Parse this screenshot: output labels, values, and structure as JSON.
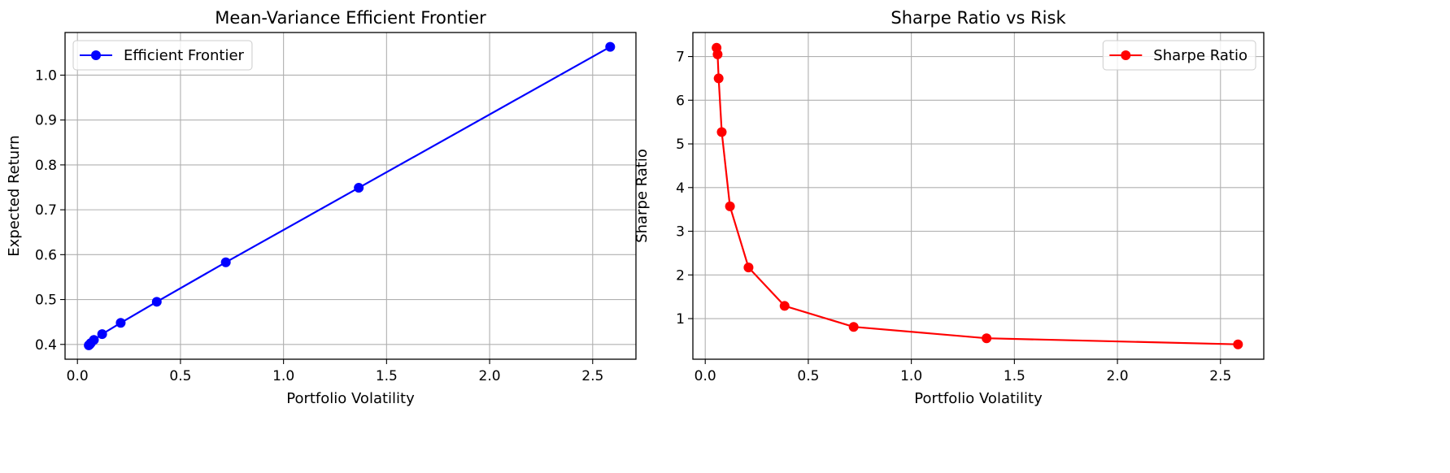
{
  "chart_data": [
    {
      "type": "line",
      "title": "Mean-Variance Efficient Frontier",
      "xlabel": "Portfolio Volatility",
      "ylabel": "Expected Return",
      "xlim": [
        -0.06,
        2.71
      ],
      "ylim": [
        0.367,
        1.095
      ],
      "xticks": [
        "0.0",
        "0.5",
        "1.0",
        "1.5",
        "2.0",
        "2.5"
      ],
      "yticks": [
        "0.4",
        "0.5",
        "0.6",
        "0.7",
        "0.8",
        "0.9",
        "1.0"
      ],
      "grid": true,
      "legend_position": "upper left",
      "series": [
        {
          "name": "Efficient Frontier",
          "color": "#0000ff",
          "marker": "circle",
          "x": [
            0.055,
            0.06,
            0.065,
            0.08,
            0.12,
            0.21,
            0.385,
            0.72,
            1.365,
            2.585
          ],
          "y": [
            0.398,
            0.4,
            0.403,
            0.41,
            0.423,
            0.448,
            0.495,
            0.583,
            0.749,
            1.063
          ]
        }
      ]
    },
    {
      "type": "line",
      "title": "Sharpe Ratio vs Risk",
      "xlabel": "Portfolio Volatility",
      "ylabel": "Sharpe Ratio",
      "xlim": [
        -0.06,
        2.71
      ],
      "ylim": [
        0.07,
        7.55
      ],
      "xticks": [
        "0.0",
        "0.5",
        "1.0",
        "1.5",
        "2.0",
        "2.5"
      ],
      "yticks": [
        "1",
        "2",
        "3",
        "4",
        "5",
        "6",
        "7"
      ],
      "grid": true,
      "legend_position": "upper right",
      "series": [
        {
          "name": "Sharpe Ratio",
          "color": "#ff0000",
          "marker": "circle",
          "x": [
            0.055,
            0.06,
            0.065,
            0.08,
            0.12,
            0.21,
            0.385,
            0.72,
            1.365,
            2.585
          ],
          "y": [
            7.2,
            7.05,
            6.5,
            5.27,
            3.57,
            2.17,
            1.29,
            0.81,
            0.55,
            0.41
          ]
        }
      ]
    }
  ]
}
